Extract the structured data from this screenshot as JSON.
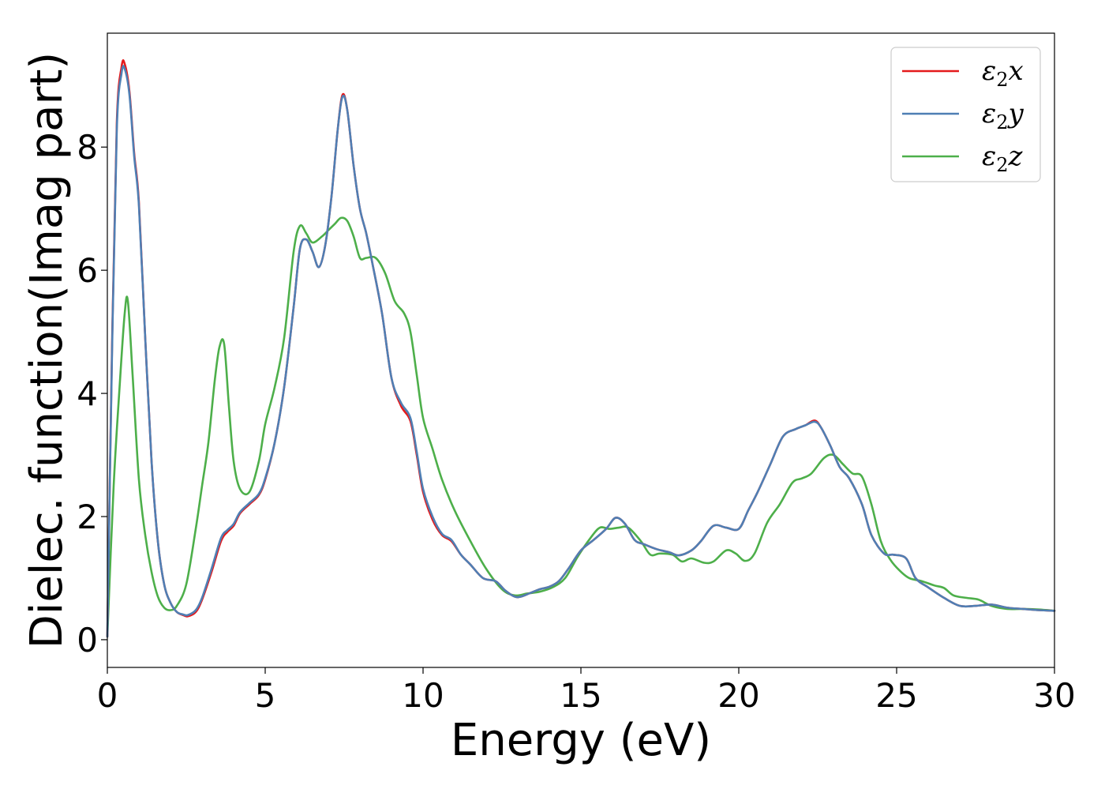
{
  "chart_data": {
    "type": "line",
    "title": "",
    "xlabel": "Energy (eV)",
    "ylabel": "Dielec. function(Imag part)",
    "xlim": [
      0,
      30
    ],
    "ylim": [
      -0.45,
      9.85
    ],
    "xticks": [
      0,
      5,
      10,
      15,
      20,
      25,
      30
    ],
    "yticks": [
      0,
      2,
      4,
      6,
      8
    ],
    "grid": false,
    "legend_position": "top-right",
    "series": [
      {
        "name": "ε₂x",
        "legend_base": "ε",
        "legend_sub": "2",
        "legend_suffix": "x",
        "color": "#e41a1c",
        "x": [
          0,
          0.15,
          0.3,
          0.45,
          0.55,
          0.7,
          0.85,
          1.0,
          1.2,
          1.4,
          1.6,
          1.8,
          2.0,
          2.2,
          2.4,
          2.55,
          2.8,
          3.0,
          3.3,
          3.6,
          3.8,
          4.0,
          4.2,
          4.5,
          4.8,
          5.0,
          5.3,
          5.6,
          5.9,
          6.1,
          6.3,
          6.5,
          6.7,
          6.9,
          7.1,
          7.3,
          7.45,
          7.6,
          7.8,
          8.0,
          8.2,
          8.4,
          8.7,
          9.0,
          9.3,
          9.6,
          9.8,
          10.0,
          10.3,
          10.6,
          10.9,
          11.2,
          11.5,
          11.9,
          12.3,
          12.6,
          12.9,
          13.1,
          13.4,
          13.7,
          14.0,
          14.3,
          14.6,
          15.0,
          15.4,
          15.8,
          16.1,
          16.4,
          16.7,
          17.0,
          17.4,
          17.8,
          18.1,
          18.5,
          18.8,
          19.2,
          19.6,
          20.0,
          20.3,
          20.6,
          21.0,
          21.4,
          21.8,
          22.1,
          22.4,
          22.6,
          22.9,
          23.2,
          23.5,
          23.9,
          24.2,
          24.6,
          24.9,
          25.3,
          25.6,
          26.0,
          26.5,
          27.0,
          27.5,
          28.0,
          28.5,
          29.0,
          29.5,
          30.0
        ],
        "values": [
          0.05,
          4.8,
          8.4,
          9.3,
          9.35,
          8.9,
          7.9,
          7.1,
          4.9,
          2.9,
          1.6,
          0.9,
          0.6,
          0.45,
          0.4,
          0.38,
          0.45,
          0.65,
          1.1,
          1.6,
          1.75,
          1.85,
          2.05,
          2.2,
          2.35,
          2.6,
          3.2,
          4.1,
          5.4,
          6.35,
          6.5,
          6.3,
          6.05,
          6.4,
          7.2,
          8.3,
          8.85,
          8.6,
          7.7,
          7.0,
          6.6,
          6.1,
          5.3,
          4.25,
          3.8,
          3.55,
          3.0,
          2.4,
          1.95,
          1.7,
          1.6,
          1.38,
          1.22,
          1.0,
          0.95,
          0.8,
          0.7,
          0.7,
          0.76,
          0.82,
          0.86,
          0.95,
          1.15,
          1.45,
          1.62,
          1.8,
          1.98,
          1.88,
          1.62,
          1.55,
          1.47,
          1.42,
          1.37,
          1.45,
          1.6,
          1.85,
          1.82,
          1.8,
          2.1,
          2.4,
          2.85,
          3.3,
          3.42,
          3.48,
          3.56,
          3.45,
          3.15,
          2.8,
          2.62,
          2.2,
          1.7,
          1.4,
          1.38,
          1.32,
          1.0,
          0.85,
          0.68,
          0.55,
          0.55,
          0.57,
          0.52,
          0.5,
          0.48,
          0.47
        ]
      },
      {
        "name": "ε₂y",
        "legend_base": "ε",
        "legend_sub": "2",
        "legend_suffix": "y",
        "color": "#4f7fb4",
        "x": [
          0,
          0.15,
          0.3,
          0.45,
          0.55,
          0.7,
          0.85,
          1.0,
          1.2,
          1.4,
          1.6,
          1.8,
          2.0,
          2.2,
          2.4,
          2.55,
          2.8,
          3.0,
          3.3,
          3.6,
          3.8,
          4.0,
          4.2,
          4.5,
          4.8,
          5.0,
          5.3,
          5.6,
          5.9,
          6.1,
          6.3,
          6.5,
          6.7,
          6.9,
          7.1,
          7.3,
          7.45,
          7.6,
          7.8,
          8.0,
          8.2,
          8.4,
          8.7,
          9.0,
          9.3,
          9.6,
          9.8,
          10.0,
          10.3,
          10.6,
          10.9,
          11.2,
          11.5,
          11.9,
          12.3,
          12.6,
          12.9,
          13.1,
          13.4,
          13.7,
          14.0,
          14.3,
          14.6,
          15.0,
          15.4,
          15.8,
          16.1,
          16.4,
          16.7,
          17.0,
          17.4,
          17.8,
          18.1,
          18.5,
          18.8,
          19.2,
          19.6,
          20.0,
          20.3,
          20.6,
          21.0,
          21.4,
          21.8,
          22.1,
          22.4,
          22.6,
          22.9,
          23.2,
          23.5,
          23.9,
          24.2,
          24.6,
          24.9,
          25.3,
          25.6,
          26.0,
          26.5,
          27.0,
          27.5,
          28.0,
          28.5,
          29.0,
          29.5,
          30.0
        ],
        "values": [
          0.05,
          4.7,
          8.3,
          9.2,
          9.27,
          8.85,
          7.85,
          7.05,
          4.9,
          2.9,
          1.6,
          0.9,
          0.6,
          0.45,
          0.41,
          0.4,
          0.48,
          0.68,
          1.15,
          1.65,
          1.78,
          1.88,
          2.07,
          2.22,
          2.37,
          2.62,
          3.2,
          4.1,
          5.4,
          6.35,
          6.5,
          6.3,
          6.05,
          6.4,
          7.2,
          8.3,
          8.82,
          8.6,
          7.7,
          7.0,
          6.6,
          6.1,
          5.3,
          4.25,
          3.85,
          3.6,
          3.05,
          2.45,
          2.0,
          1.72,
          1.62,
          1.38,
          1.22,
          1.0,
          0.95,
          0.8,
          0.7,
          0.7,
          0.76,
          0.82,
          0.86,
          0.95,
          1.15,
          1.45,
          1.62,
          1.8,
          1.98,
          1.88,
          1.62,
          1.55,
          1.47,
          1.42,
          1.37,
          1.45,
          1.6,
          1.85,
          1.82,
          1.8,
          2.1,
          2.4,
          2.85,
          3.3,
          3.42,
          3.48,
          3.54,
          3.45,
          3.15,
          2.8,
          2.62,
          2.2,
          1.7,
          1.4,
          1.38,
          1.32,
          1.0,
          0.85,
          0.68,
          0.55,
          0.55,
          0.57,
          0.52,
          0.5,
          0.48,
          0.47
        ]
      },
      {
        "name": "ε₂z",
        "legend_base": "ε",
        "legend_sub": "2",
        "legend_suffix": "z",
        "color": "#4daf4a",
        "x": [
          0,
          0.2,
          0.4,
          0.55,
          0.65,
          0.8,
          1.0,
          1.2,
          1.4,
          1.6,
          1.8,
          2.0,
          2.2,
          2.5,
          2.8,
          3.0,
          3.2,
          3.4,
          3.55,
          3.7,
          3.85,
          4.0,
          4.2,
          4.5,
          4.8,
          5.0,
          5.3,
          5.6,
          5.9,
          6.1,
          6.3,
          6.5,
          6.8,
          7.0,
          7.2,
          7.4,
          7.6,
          7.8,
          8.0,
          8.2,
          8.5,
          8.8,
          9.1,
          9.4,
          9.6,
          9.8,
          10.0,
          10.3,
          10.6,
          11.0,
          11.5,
          12.0,
          12.5,
          12.9,
          13.3,
          13.7,
          14.1,
          14.5,
          14.9,
          15.3,
          15.6,
          15.9,
          16.2,
          16.5,
          16.9,
          17.2,
          17.5,
          17.9,
          18.2,
          18.5,
          18.9,
          19.2,
          19.6,
          19.9,
          20.2,
          20.5,
          20.9,
          21.3,
          21.7,
          22.0,
          22.3,
          22.7,
          23.0,
          23.3,
          23.6,
          23.9,
          24.2,
          24.5,
          24.8,
          25.1,
          25.4,
          25.8,
          26.2,
          26.5,
          26.8,
          27.2,
          27.6,
          28.0,
          28.5,
          29.0,
          29.5,
          30.0
        ],
        "values": [
          0.05,
          2.5,
          4.2,
          5.3,
          5.5,
          4.3,
          2.6,
          1.7,
          1.1,
          0.7,
          0.52,
          0.48,
          0.55,
          0.9,
          1.8,
          2.5,
          3.2,
          4.2,
          4.75,
          4.8,
          3.8,
          2.9,
          2.45,
          2.4,
          2.9,
          3.5,
          4.1,
          4.9,
          6.3,
          6.72,
          6.6,
          6.45,
          6.55,
          6.65,
          6.75,
          6.85,
          6.8,
          6.55,
          6.2,
          6.2,
          6.2,
          5.95,
          5.5,
          5.3,
          5.0,
          4.3,
          3.6,
          3.1,
          2.6,
          2.1,
          1.6,
          1.15,
          0.82,
          0.72,
          0.75,
          0.78,
          0.85,
          1.0,
          1.35,
          1.65,
          1.82,
          1.8,
          1.82,
          1.82,
          1.6,
          1.38,
          1.4,
          1.38,
          1.27,
          1.32,
          1.25,
          1.27,
          1.45,
          1.4,
          1.28,
          1.4,
          1.9,
          2.2,
          2.55,
          2.62,
          2.7,
          2.95,
          3.0,
          2.85,
          2.7,
          2.65,
          2.2,
          1.6,
          1.3,
          1.12,
          1.0,
          0.95,
          0.88,
          0.84,
          0.72,
          0.68,
          0.65,
          0.55,
          0.5,
          0.5,
          0.49,
          0.47
        ]
      }
    ]
  }
}
